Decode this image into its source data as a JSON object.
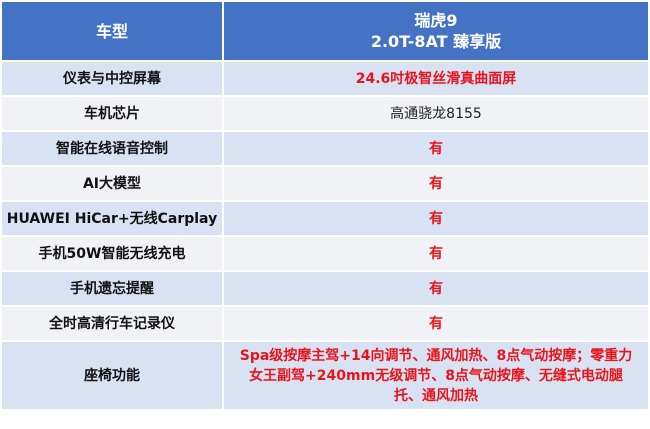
{
  "header": {
    "label": "车型",
    "model_line1": "瑞虎9",
    "model_line2": "2.0T-8AT 臻享版"
  },
  "colors": {
    "header_bg": "#4472c4",
    "row_blue": "#d9e2f3",
    "row_light": "#f1f2f6",
    "highlight_red": "#e8141b"
  },
  "rows": [
    {
      "label": "仪表与中控屏幕",
      "value": "24.6吋极智丝滑真曲面屏",
      "highlight": true
    },
    {
      "label": "车机芯片",
      "value": "高通骁龙8155",
      "highlight": false
    },
    {
      "label": "智能在线语音控制",
      "value": "有",
      "highlight": true
    },
    {
      "label": "AI大模型",
      "value": "有",
      "highlight": true
    },
    {
      "label": "HUAWEI HiCar+无线Carplay",
      "value": "有",
      "highlight": true
    },
    {
      "label": "手机50W智能无线充电",
      "value": "有",
      "highlight": true
    },
    {
      "label": "手机遗忘提醒",
      "value": "有",
      "highlight": true
    },
    {
      "label": "全时高清行车记录仪",
      "value": "有",
      "highlight": true
    },
    {
      "label": "座椅功能",
      "value": "Spa级按摩主驾+14向调节、通风加热、8点气动按摩；零重力女王副驾+240mm无级调节、8点气动按摩、无缝式电动腿托、通风加热",
      "highlight": true
    }
  ]
}
